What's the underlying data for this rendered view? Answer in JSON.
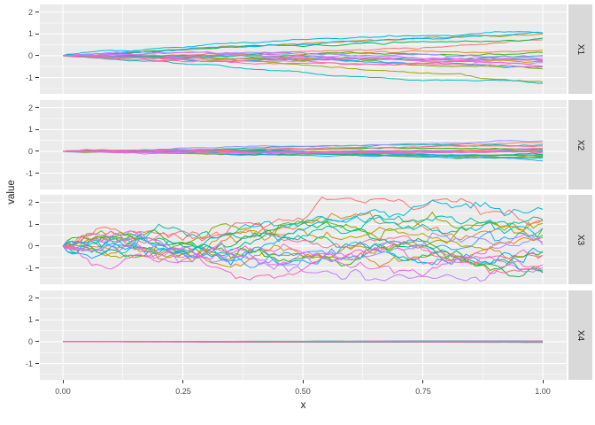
{
  "figure": {
    "background": "#FFFFFF",
    "panel_background": "#EBEBEB",
    "grid_color": "#FFFFFF",
    "strip_background": "#D9D9D9",
    "strip_text_color": "#1A1A1A",
    "tick_mark_color": "#333333",
    "tick_label_color": "#4D4D4D",
    "axis_title_color": "#1A1A1A"
  },
  "chart_data": {
    "type": "line",
    "title": "",
    "xlabel": "x",
    "ylabel": "value",
    "legend": "none",
    "grid": "on",
    "facet_layout": "rows, strips on right",
    "x_tick_labels": [
      "0.00",
      "0.25",
      "0.50",
      "0.75",
      "1.00"
    ],
    "x_tick_values": [
      0,
      0.25,
      0.5,
      0.75,
      1
    ],
    "y_tick_labels": [
      "2",
      "1",
      "0",
      "-1"
    ],
    "y_tick_values": [
      2,
      1,
      0,
      -1
    ],
    "x_minor_values": [
      0.125,
      0.375,
      0.625,
      0.875
    ],
    "y_minor_values": [
      1.5,
      0.5,
      -0.5,
      -1.5
    ],
    "xlim": [
      -0.048,
      1.049
    ],
    "ylim": [
      -1.75,
      2.35
    ],
    "n_series_per_facet": 20,
    "n_points": 101,
    "series_colors": [
      "#F8766D",
      "#EA8331",
      "#D89000",
      "#C09B00",
      "#A3A500",
      "#7CAE00",
      "#39B600",
      "#00BB4E",
      "#00BF7D",
      "#00C1A3",
      "#00BFC4",
      "#00BAE0",
      "#00B0F6",
      "#35A2FF",
      "#9590FF",
      "#C77CFF",
      "#E76BF3",
      "#FA62DB",
      "#FF62BC",
      "#FF6A98"
    ],
    "facets": [
      {
        "label": "X1",
        "style": "fan",
        "slope_sd": 0.55,
        "slope_max": 1.12,
        "noise": 0.02,
        "seed": 3,
        "end_spread": [
          -1.1,
          1.1
        ],
        "description": "lines start at 0 and fan out almost linearly to about +/-1.1"
      },
      {
        "label": "X2",
        "style": "fan",
        "slope_sd": 0.2,
        "slope_max": 0.5,
        "noise": 0.013,
        "seed": 7,
        "end_spread": [
          -0.5,
          0.55
        ],
        "description": "lines start at 0 and fan out slightly to about +/-0.5"
      },
      {
        "label": "X3",
        "style": "walk",
        "step_sd": 0.135,
        "slope_max": 0,
        "noise": 0,
        "seed": 5,
        "end_spread": [
          -1.5,
          2.1
        ],
        "description": "rough random-walk paths starting at 0, spreading between about -1.5 and +2"
      },
      {
        "label": "X4",
        "style": "fan",
        "slope_sd": 0.012,
        "slope_max": 0.05,
        "noise": 0.0015,
        "seed": 9,
        "end_spread": [
          -0.06,
          0.06
        ],
        "description": "essentially flat lines hugging 0"
      }
    ]
  }
}
